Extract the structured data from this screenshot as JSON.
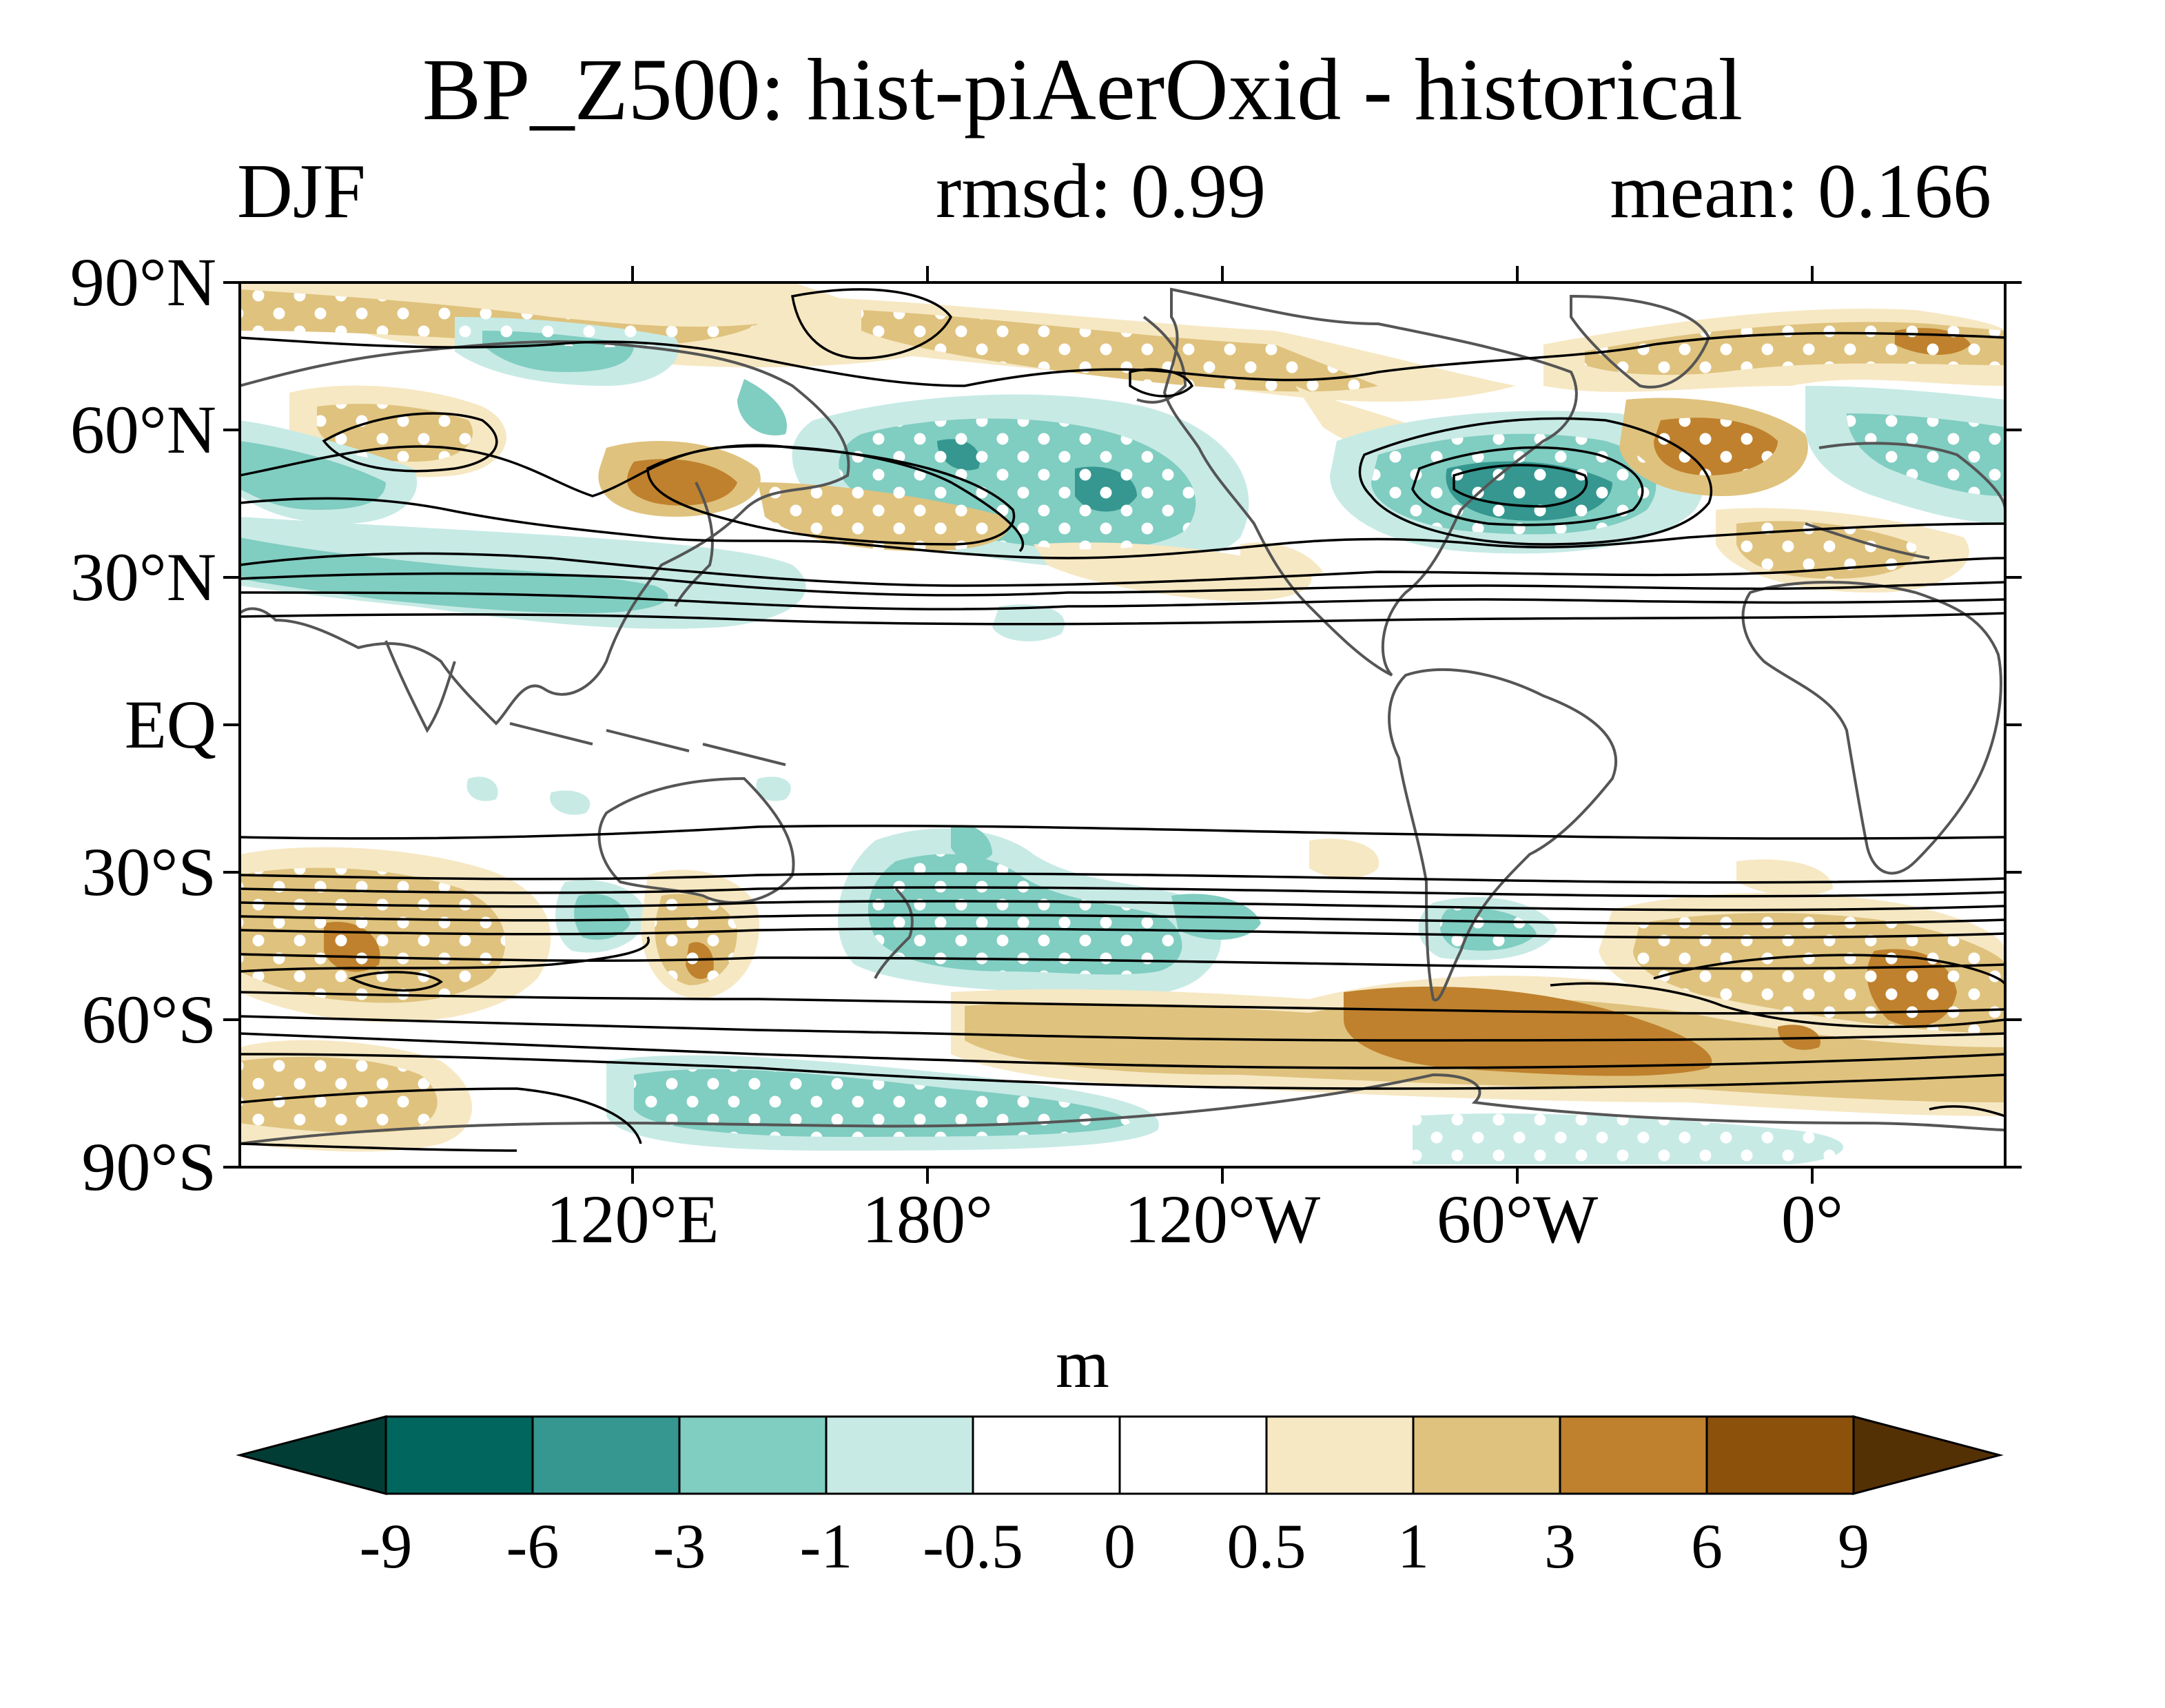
{
  "title": "BP_Z500: hist-piAerOxid - historical",
  "season": "DJF",
  "rmsd": "rmsd: 0.99",
  "mean": "mean: 0.166",
  "map": {
    "y_ticks": [
      "90°N",
      "60°N",
      "30°N",
      "EQ",
      "30°S",
      "60°S",
      "90°S"
    ],
    "x_ticks": [
      "120°E",
      "180°",
      "120°W",
      "60°W",
      "0°"
    ],
    "lat_range": [
      -90,
      90
    ],
    "lon_range_label": "40°E to 40°E (centered on 180°)"
  },
  "colorbar": {
    "units": "m",
    "levels": [
      "-9",
      "-6",
      "-3",
      "-1",
      "-0.5",
      "0",
      "0.5",
      "1",
      "3",
      "6",
      "9"
    ],
    "colors": [
      "#023d35",
      "#01665e",
      "#35978f",
      "#80cdc1",
      "#c7eae5",
      "#ffffff",
      "#ffffff",
      "#f6e8c3",
      "#dfc27d",
      "#bf812d",
      "#8c510a",
      "#543005"
    ]
  },
  "colors": {
    "teal_dark": "#35978f",
    "teal_mid": "#80cdc1",
    "teal_light": "#c7eae5",
    "brown_light": "#f6e8c3",
    "brown_mid": "#dfc27d",
    "brown_dark": "#bf812d",
    "coast": "#555555"
  }
}
